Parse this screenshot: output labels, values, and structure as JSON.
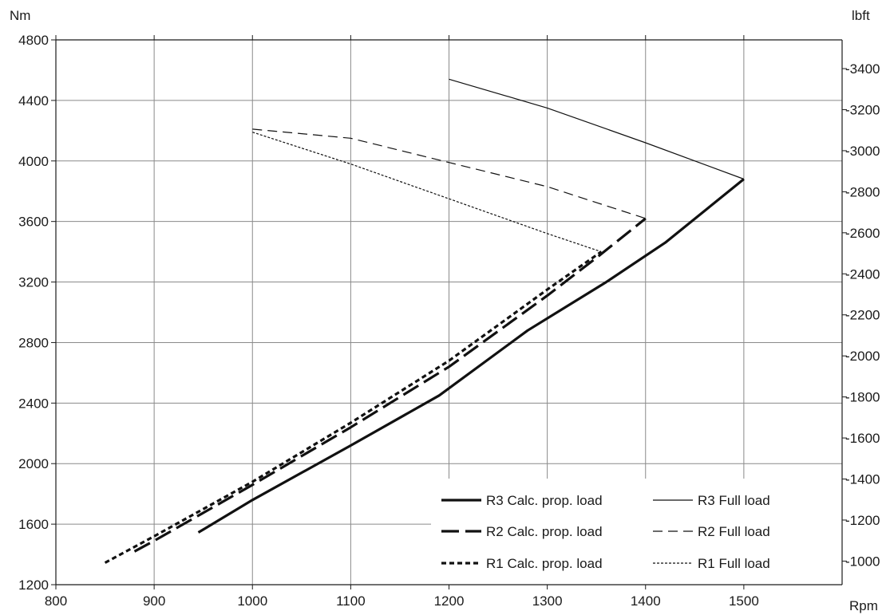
{
  "chart_data": {
    "type": "line",
    "title": "",
    "xlabel": "Rpm",
    "ylabel_left": "Nm",
    "ylabel_right": "lbft",
    "xlim": [
      800,
      1600
    ],
    "ylim": [
      1200,
      4800
    ],
    "ylim_right": [
      885,
      3540
    ],
    "grid": true,
    "legend_position": "bottom-right",
    "x_ticks": [
      "800",
      "900",
      "1000",
      "1100",
      "1200",
      "1300",
      "1400",
      "1500"
    ],
    "x_tick_values": [
      800,
      900,
      1000,
      1100,
      1200,
      1300,
      1400,
      1500
    ],
    "y_ticks_left": [
      "1200",
      "1600",
      "2000",
      "2400",
      "2800",
      "3200",
      "3600",
      "4000",
      "4400",
      "4800"
    ],
    "y_tick_values_left": [
      1200,
      1600,
      2000,
      2400,
      2800,
      3200,
      3600,
      4000,
      4400,
      4800
    ],
    "y_ticks_right": [
      "1000",
      "1200",
      "1400",
      "1600",
      "1800",
      "2000",
      "2200",
      "2400",
      "2600",
      "2800",
      "3000",
      "3200",
      "3400"
    ],
    "y_tick_values_right": [
      1000,
      1200,
      1400,
      1600,
      1800,
      2000,
      2200,
      2400,
      2600,
      2800,
      3000,
      3200,
      3400
    ],
    "series": [
      {
        "name": "R3 Calc. prop. load",
        "style": "thick-solid",
        "x": [
          945,
          1000,
          1100,
          1190,
          1280,
          1360,
          1420,
          1500
        ],
        "y": [
          1545,
          1760,
          2120,
          2450,
          2880,
          3200,
          3460,
          3880
        ]
      },
      {
        "name": "R2 Calc. prop. load",
        "style": "thick-long-dash",
        "x": [
          880,
          900,
          1000,
          1100,
          1200,
          1300,
          1350,
          1400
        ],
        "y": [
          1420,
          1490,
          1860,
          2240,
          2640,
          3110,
          3360,
          3620
        ]
      },
      {
        "name": "R1 Calc. prop. load",
        "style": "thick-short-dash",
        "x": [
          850,
          900,
          1000,
          1100,
          1200,
          1300,
          1355
        ],
        "y": [
          1345,
          1520,
          1880,
          2270,
          2680,
          3150,
          3400
        ]
      },
      {
        "name": "R3 Full load",
        "style": "thin-solid",
        "x": [
          1200,
          1300,
          1400,
          1500
        ],
        "y": [
          4540,
          4350,
          4120,
          3880
        ]
      },
      {
        "name": "R2 Full load",
        "style": "thin-dash",
        "x": [
          1000,
          1100,
          1200,
          1300,
          1400
        ],
        "y": [
          4210,
          4150,
          3990,
          3830,
          3620
        ]
      },
      {
        "name": "R1 Full load",
        "style": "thin-dot",
        "x": [
          1000,
          1100,
          1200,
          1300,
          1355
        ],
        "y": [
          4190,
          3980,
          3750,
          3520,
          3400
        ]
      }
    ],
    "colors": {
      "line": "#111111",
      "grid": "#8a8a8a",
      "background": "#ffffff"
    }
  }
}
